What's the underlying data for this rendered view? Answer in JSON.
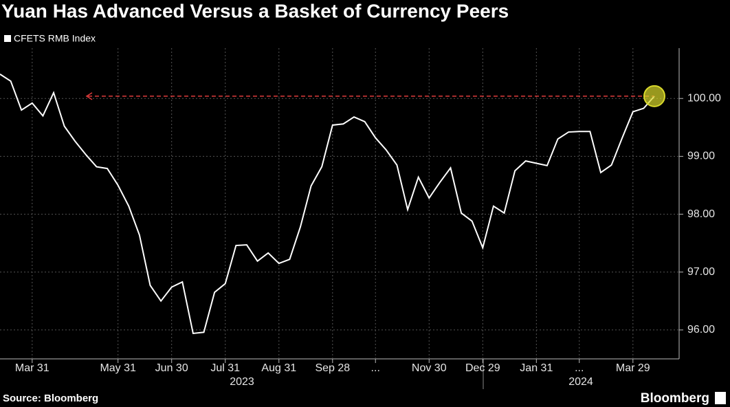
{
  "chart_data": {
    "type": "line",
    "title": "Yuan Has Advanced Versus a Basket of Currency Peers",
    "source": "Source: Bloomberg",
    "brand": "Bloomberg",
    "categories": [
      null,
      null,
      null,
      "Mar 31",
      null,
      null,
      null,
      null,
      null,
      null,
      null,
      "May 31",
      null,
      null,
      null,
      null,
      "Jun 30",
      null,
      null,
      null,
      null,
      "Jul 31",
      null,
      null,
      null,
      null,
      "Aug 31",
      null,
      null,
      null,
      null,
      "Sep 28",
      null,
      null,
      null,
      "...",
      null,
      null,
      null,
      null,
      "Nov 30",
      null,
      null,
      null,
      null,
      "Dec 29",
      null,
      null,
      null,
      null,
      "Jan 31",
      null,
      null,
      null,
      "...",
      null,
      null,
      null,
      null,
      "Mar 29",
      null,
      null
    ],
    "year_labels": [
      "2023",
      "2024"
    ],
    "series": [
      {
        "name": "CFETS RMB Index",
        "color": "#ffffff",
        "values": [
          100.42,
          100.3,
          99.8,
          99.92,
          99.7,
          100.1,
          99.52,
          99.26,
          99.03,
          98.82,
          98.79,
          98.5,
          98.14,
          97.64,
          96.77,
          96.5,
          96.74,
          96.83,
          95.94,
          95.96,
          96.65,
          96.8,
          97.46,
          97.47,
          97.19,
          97.33,
          97.15,
          97.22,
          97.78,
          98.49,
          98.82,
          99.54,
          99.56,
          99.68,
          99.6,
          99.32,
          99.11,
          98.85,
          98.08,
          98.64,
          98.28,
          98.55,
          98.8,
          98.02,
          97.88,
          97.42,
          98.14,
          98.02,
          98.75,
          98.92,
          98.88,
          98.84,
          99.3,
          99.42,
          99.43,
          99.43,
          98.72,
          98.85,
          99.32,
          99.77,
          99.83,
          100.04
        ]
      }
    ],
    "ylim": [
      95.5,
      100.87
    ],
    "yticks": [
      {
        "value": 96,
        "label": "96.00"
      },
      {
        "value": 97,
        "label": "97.00"
      },
      {
        "value": 98,
        "label": "98.00"
      },
      {
        "value": 99,
        "label": "99.00"
      },
      {
        "value": 100,
        "label": "100.00"
      }
    ],
    "grid": true,
    "highlight_color": "#d9d92b",
    "reference_color": "#e03c3c"
  }
}
